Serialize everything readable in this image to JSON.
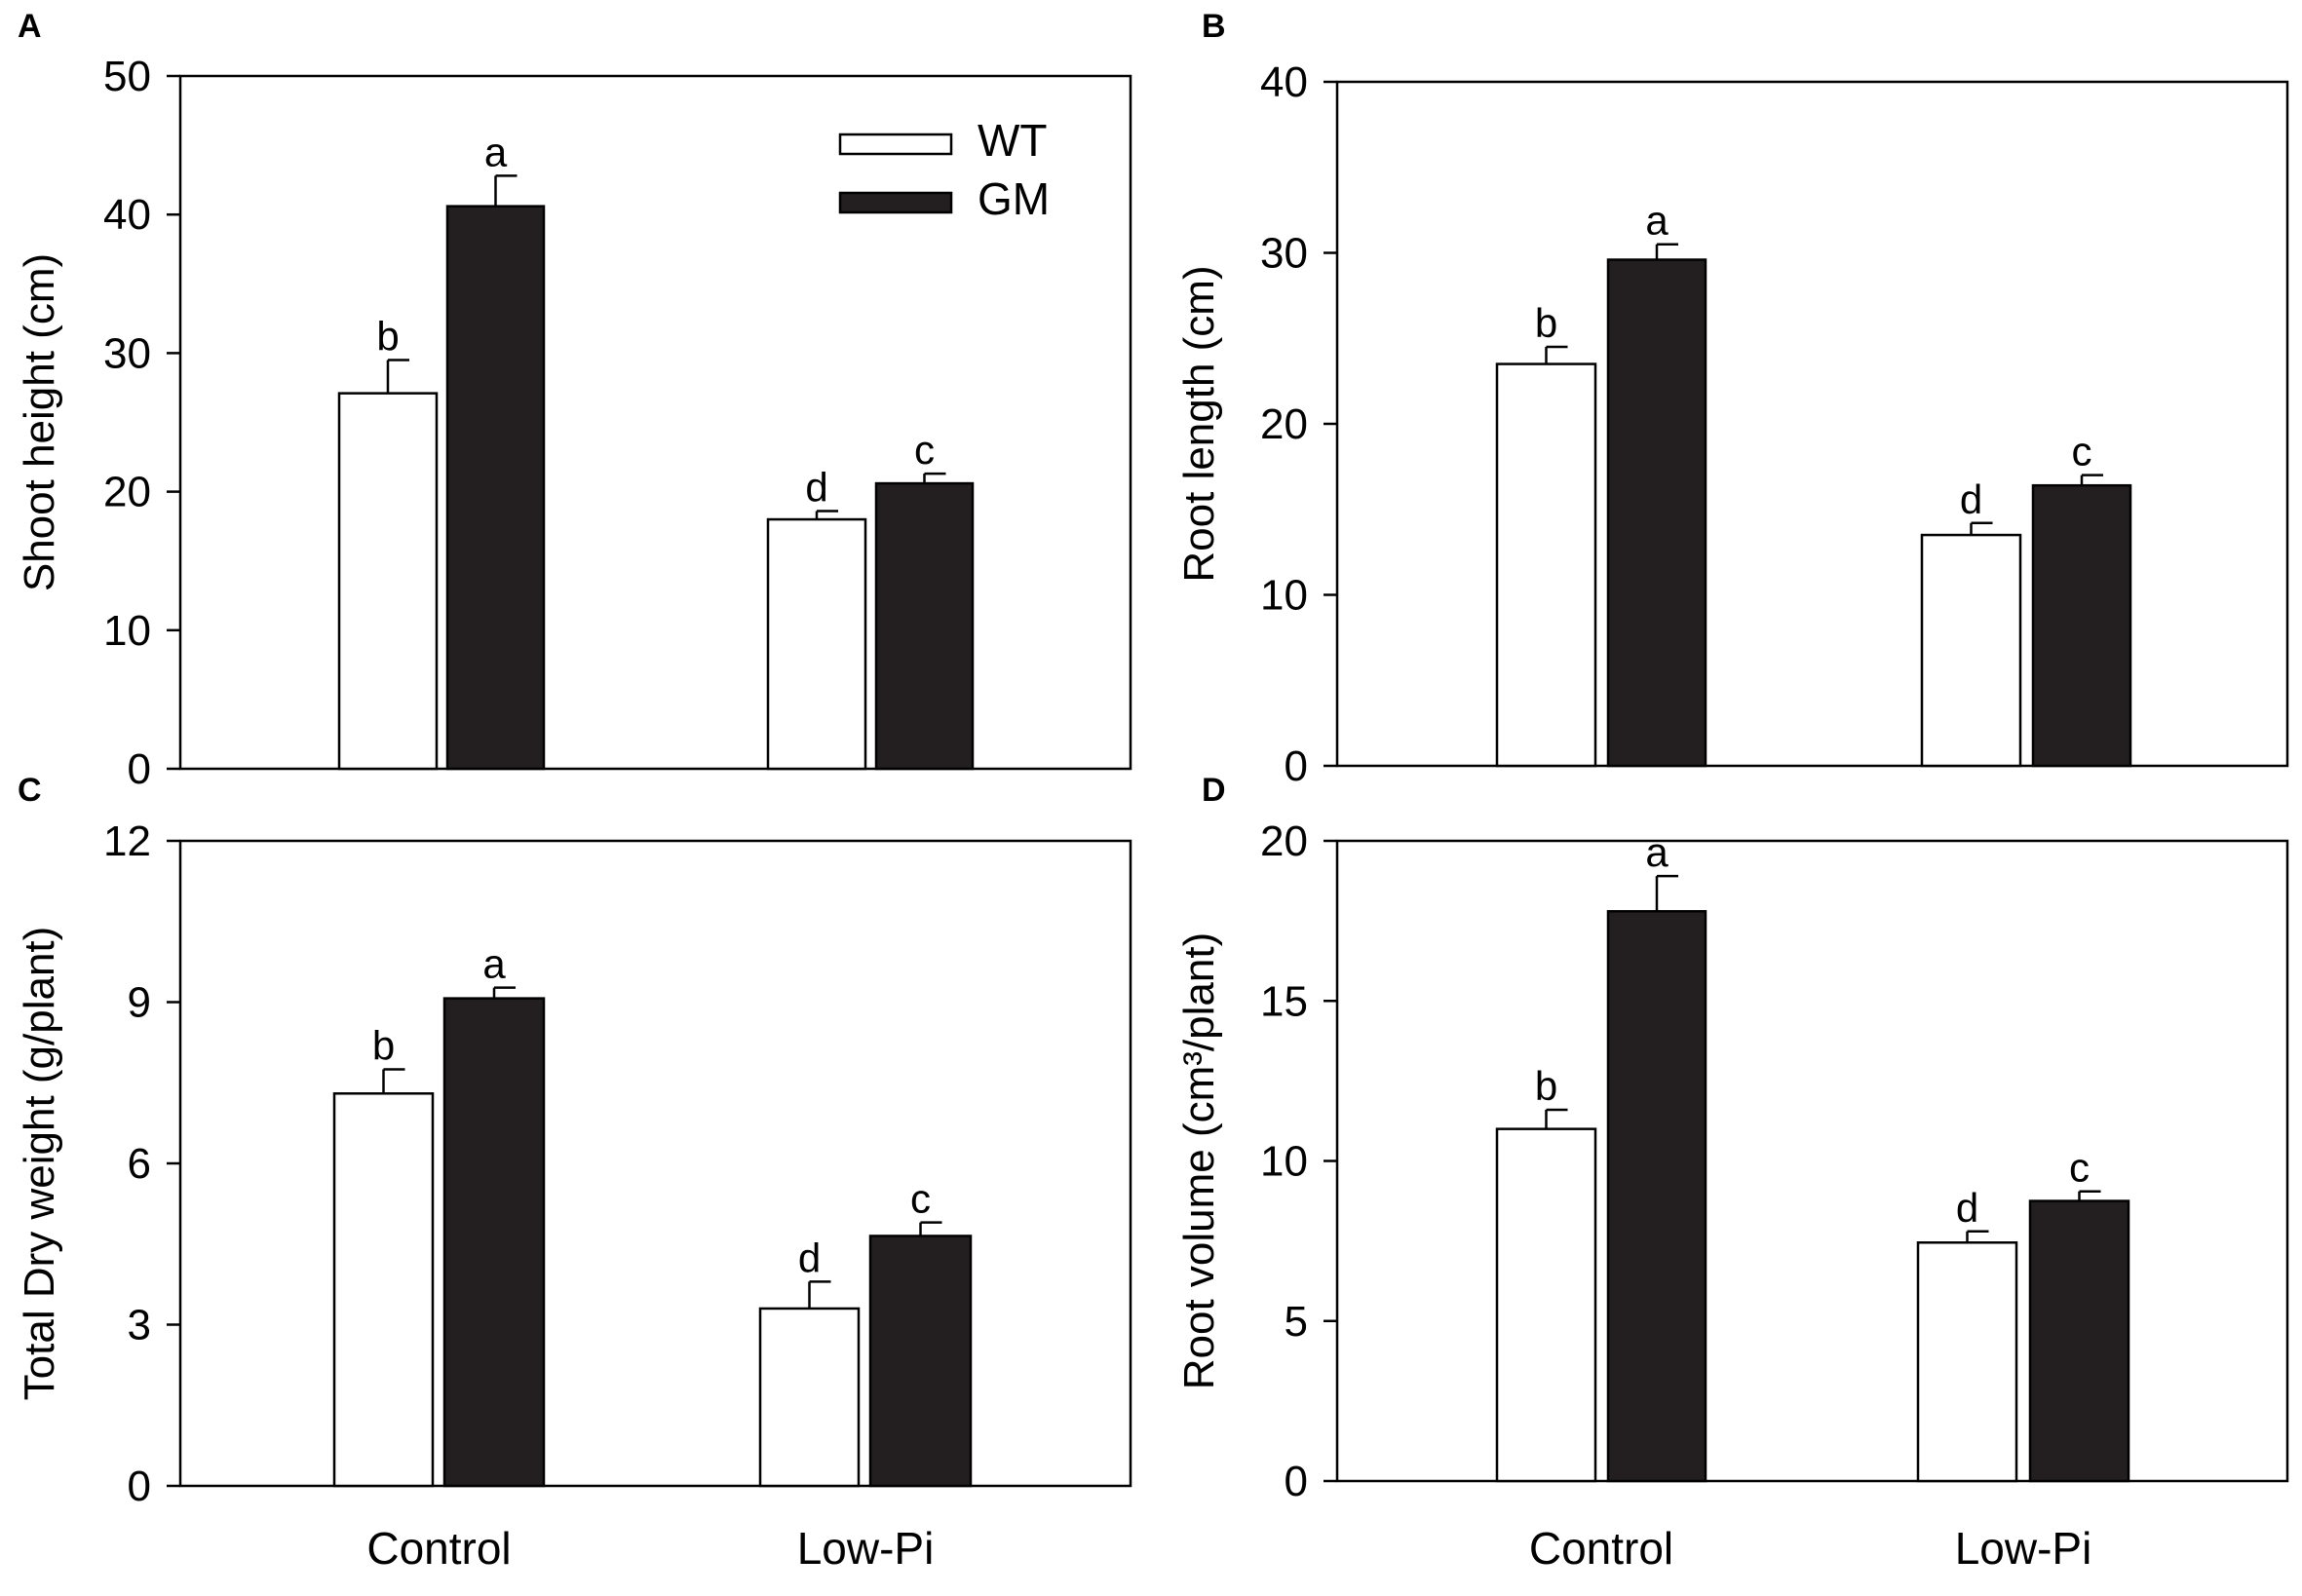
{
  "legend": {
    "entries": [
      "WT",
      "GM"
    ]
  },
  "colors": {
    "WT": "#ffffff",
    "GM": "#231f20",
    "axis": "#000000"
  },
  "chart_data": [
    {
      "panel": "A",
      "type": "bar",
      "ylabel": "Shoot height (cm)",
      "ylim": [
        0,
        50
      ],
      "yticks": [
        "0",
        "10",
        "20",
        "30",
        "40",
        "50"
      ],
      "categories": [
        "Control",
        "Low-Pi"
      ],
      "series": [
        {
          "name": "WT",
          "values": [
            27.1,
            18.0
          ],
          "errors": [
            2.4,
            0.6
          ],
          "letters": [
            "b",
            "d"
          ]
        },
        {
          "name": "GM",
          "values": [
            40.6,
            20.6
          ],
          "errors": [
            2.2,
            0.7
          ],
          "letters": [
            "a",
            "c"
          ]
        }
      ],
      "legend_position": "top-right"
    },
    {
      "panel": "B",
      "type": "bar",
      "ylabel": "Root length (cm)",
      "ylim": [
        0,
        40
      ],
      "yticks": [
        "0",
        "10",
        "20",
        "30",
        "40"
      ],
      "categories": [
        "Control",
        "Low-Pi"
      ],
      "series": [
        {
          "name": "WT",
          "values": [
            23.5,
            13.5
          ],
          "errors": [
            1.0,
            0.7
          ],
          "letters": [
            "b",
            "d"
          ]
        },
        {
          "name": "GM",
          "values": [
            29.6,
            16.4
          ],
          "errors": [
            0.9,
            0.6
          ],
          "letters": [
            "a",
            "c"
          ]
        }
      ]
    },
    {
      "panel": "C",
      "type": "bar",
      "ylabel": "Total Dry weight (g/plant)",
      "ylim": [
        0,
        12
      ],
      "yticks": [
        "0",
        "3",
        "6",
        "9",
        "12"
      ],
      "categories": [
        "Control",
        "Low-Pi"
      ],
      "series": [
        {
          "name": "WT",
          "values": [
            7.3,
            3.3
          ],
          "errors": [
            0.45,
            0.5
          ],
          "letters": [
            "b",
            "d"
          ]
        },
        {
          "name": "GM",
          "values": [
            9.07,
            4.65
          ],
          "errors": [
            0.2,
            0.25
          ],
          "letters": [
            "a",
            "c"
          ]
        }
      ]
    },
    {
      "panel": "D",
      "type": "bar",
      "ylabel": "Root volume (cm³/plant)",
      "ylim": [
        0,
        20
      ],
      "yticks": [
        "0",
        "5",
        "10",
        "15",
        "20"
      ],
      "categories": [
        "Control",
        "Low-Pi"
      ],
      "series": [
        {
          "name": "WT",
          "values": [
            11.0,
            7.45
          ],
          "errors": [
            0.6,
            0.35
          ],
          "letters": [
            "b",
            "d"
          ]
        },
        {
          "name": "GM",
          "values": [
            17.8,
            8.75
          ],
          "errors": [
            1.1,
            0.3
          ],
          "letters": [
            "a",
            "c"
          ]
        }
      ]
    }
  ]
}
